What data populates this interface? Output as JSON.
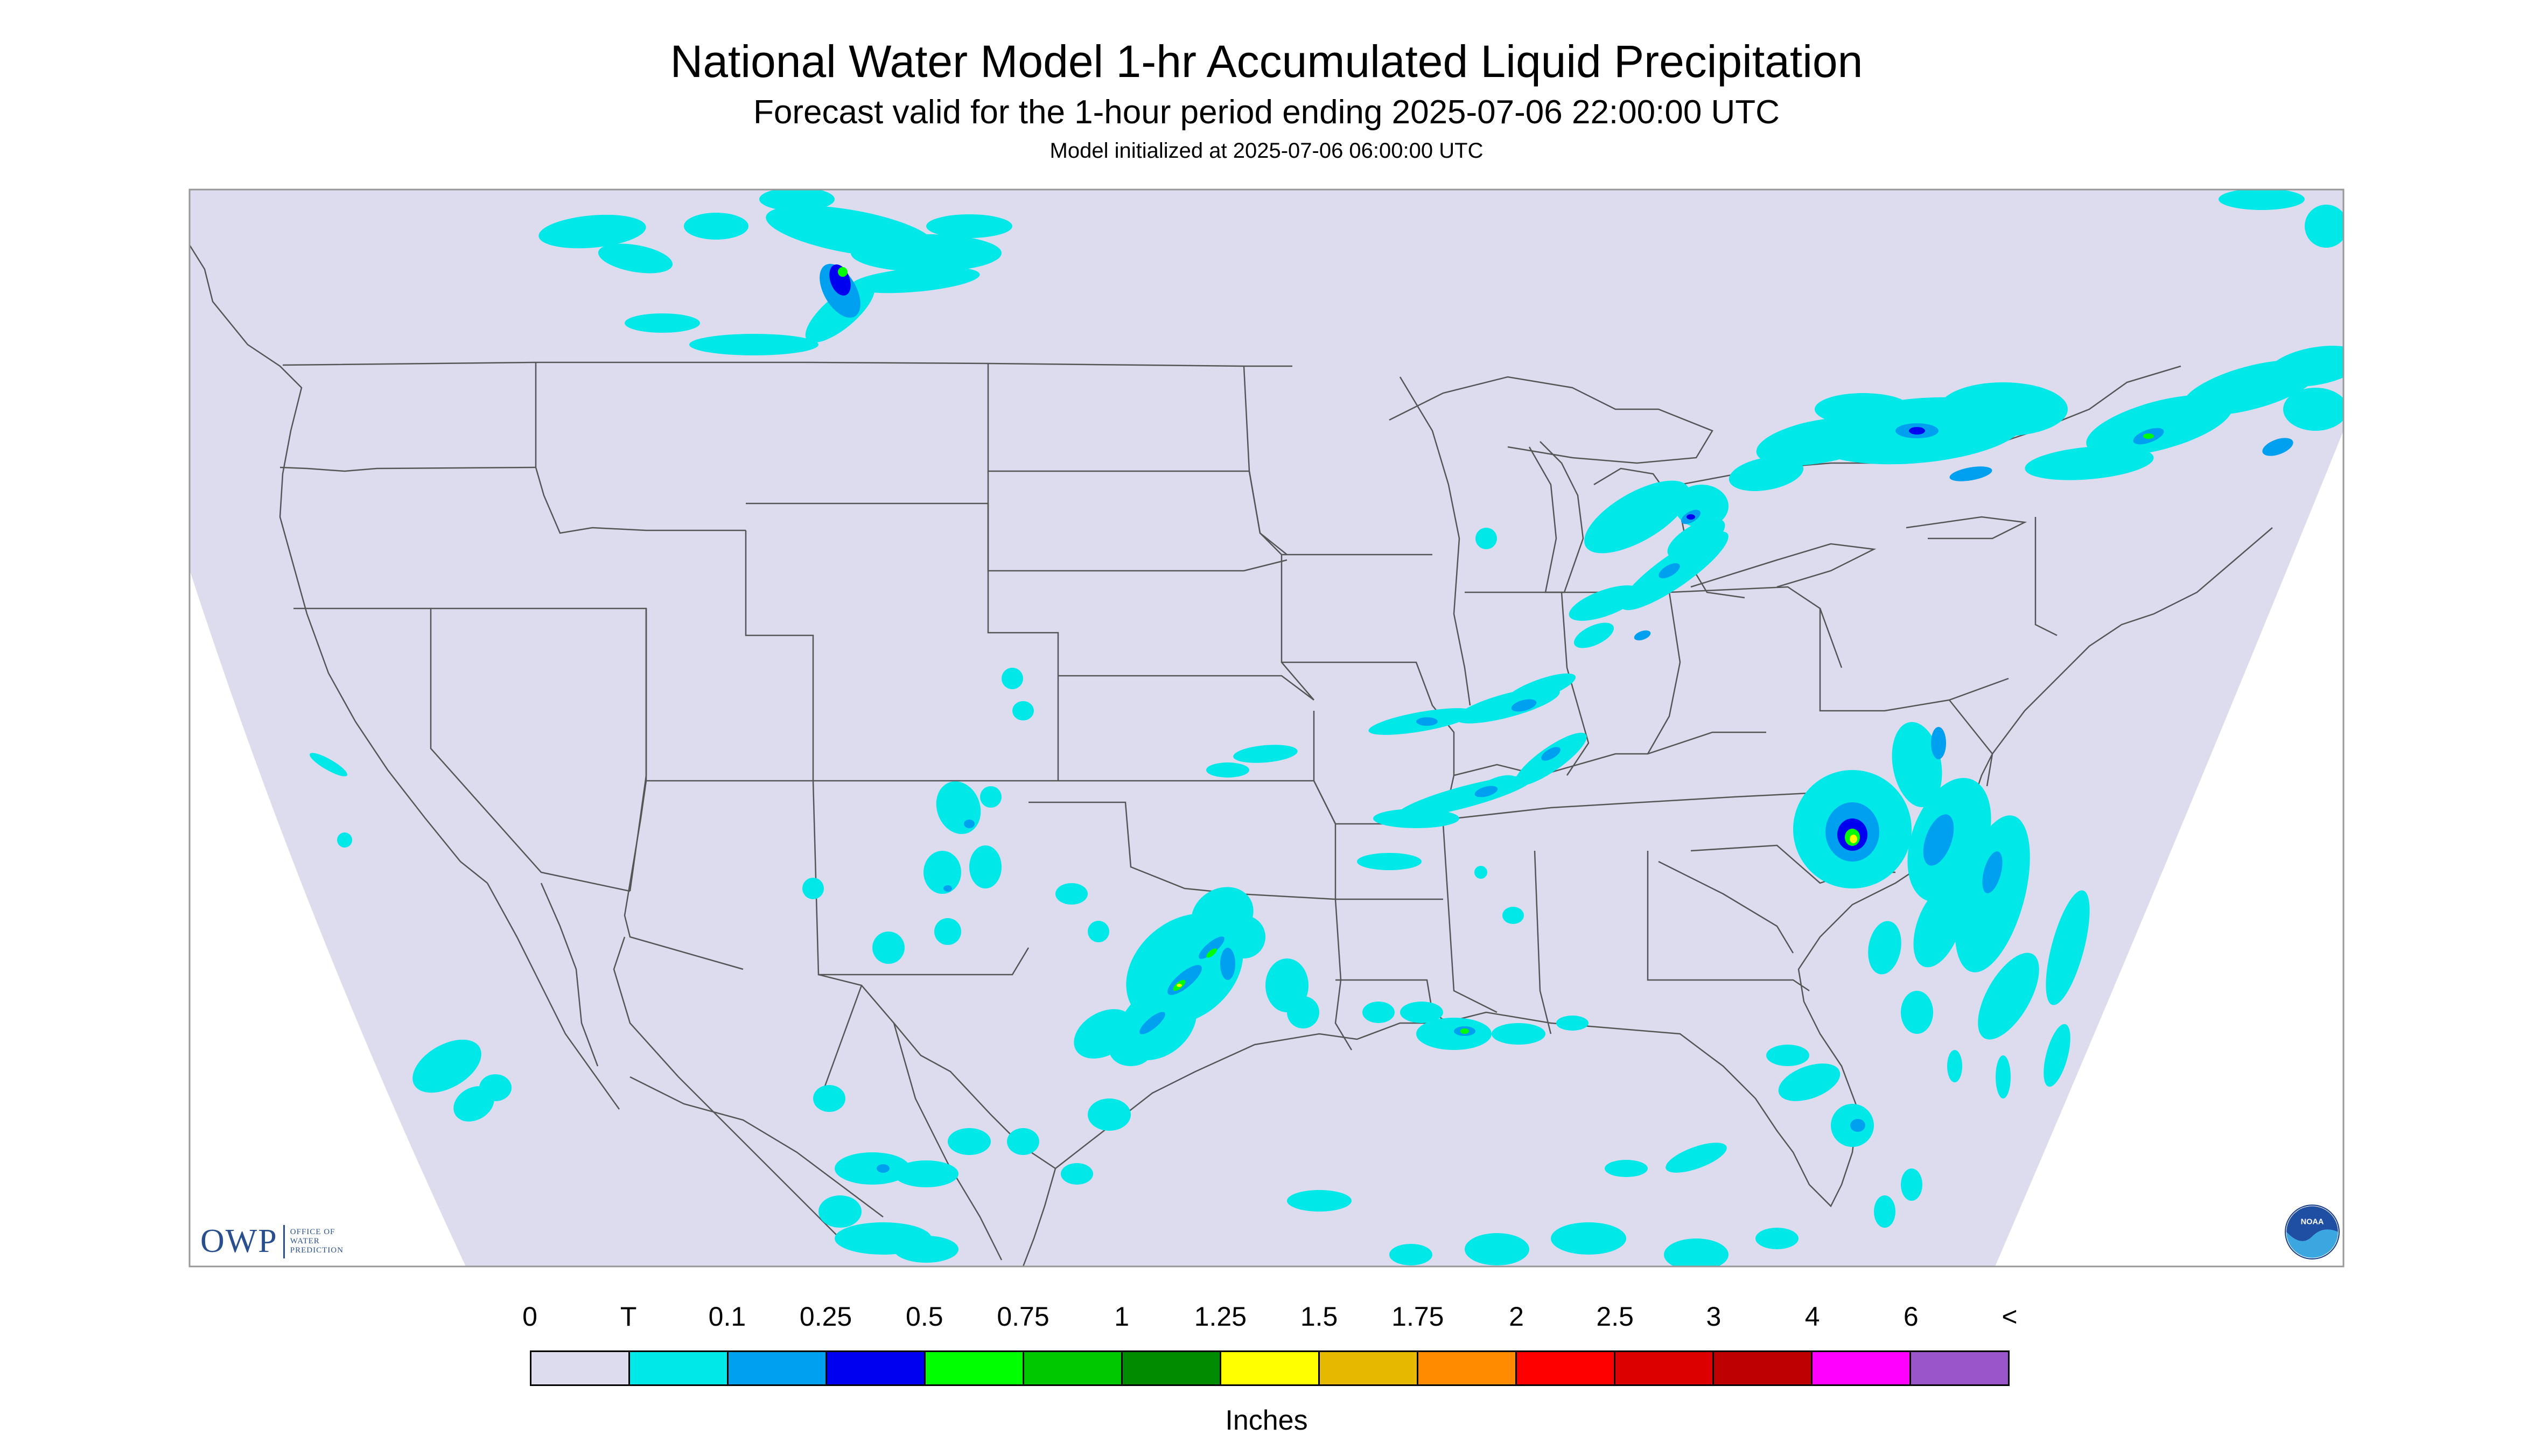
{
  "header": {
    "title": "National Water Model 1-hr Accumulated Liquid Precipitation",
    "subtitle": "Forecast valid for the 1-hour period ending 2025-07-06 22:00:00 UTC",
    "init_line": "Model initialized at 2025-07-06 06:00:00 UTC"
  },
  "colors": {
    "map_background": "#dcdcee",
    "outside_projection": "#ffffff",
    "boundary_lines": "#555555",
    "frame": "#999999"
  },
  "legend": {
    "labels": [
      "0",
      "T",
      "0.1",
      "0.25",
      "0.5",
      "0.75",
      "1",
      "1.25",
      "1.5",
      "1.75",
      "2",
      "2.5",
      "3",
      "4",
      "6",
      "<"
    ],
    "colors": [
      "#dcdcee",
      "#00e8e8",
      "#00a0f0",
      "#0000f0",
      "#00ff00",
      "#00c800",
      "#008c00",
      "#ffff00",
      "#e6b800",
      "#ff8c00",
      "#ff0000",
      "#dc0000",
      "#be0000",
      "#ff00ff",
      "#9955c9"
    ],
    "unit": "Inches"
  },
  "logos": {
    "owp_mark": "OWP",
    "owp_text": [
      "OFFICE OF",
      "WATER",
      "PREDICTION"
    ],
    "noaa_text": "NOAA"
  },
  "precip_areas": [
    {
      "region": "Southern Alberta/Saskatchewan",
      "level": "0.25-0.5"
    },
    {
      "region": "Ontario/Quebec",
      "level": "0.1-0.25"
    },
    {
      "region": "Michigan",
      "level": "0.1-0.25"
    },
    {
      "region": "Illinois/Indiana",
      "level": "0.1-0.25"
    },
    {
      "region": "Eastern North Carolina",
      "level": "0.75-1"
    },
    {
      "region": "Central Texas",
      "level": "0.5-0.75"
    },
    {
      "region": "New Mexico",
      "level": "0.1-0.25"
    },
    {
      "region": "Southern Louisiana",
      "level": "0.5-0.75"
    },
    {
      "region": "Southern Florida",
      "level": "0.1-0.25"
    }
  ]
}
